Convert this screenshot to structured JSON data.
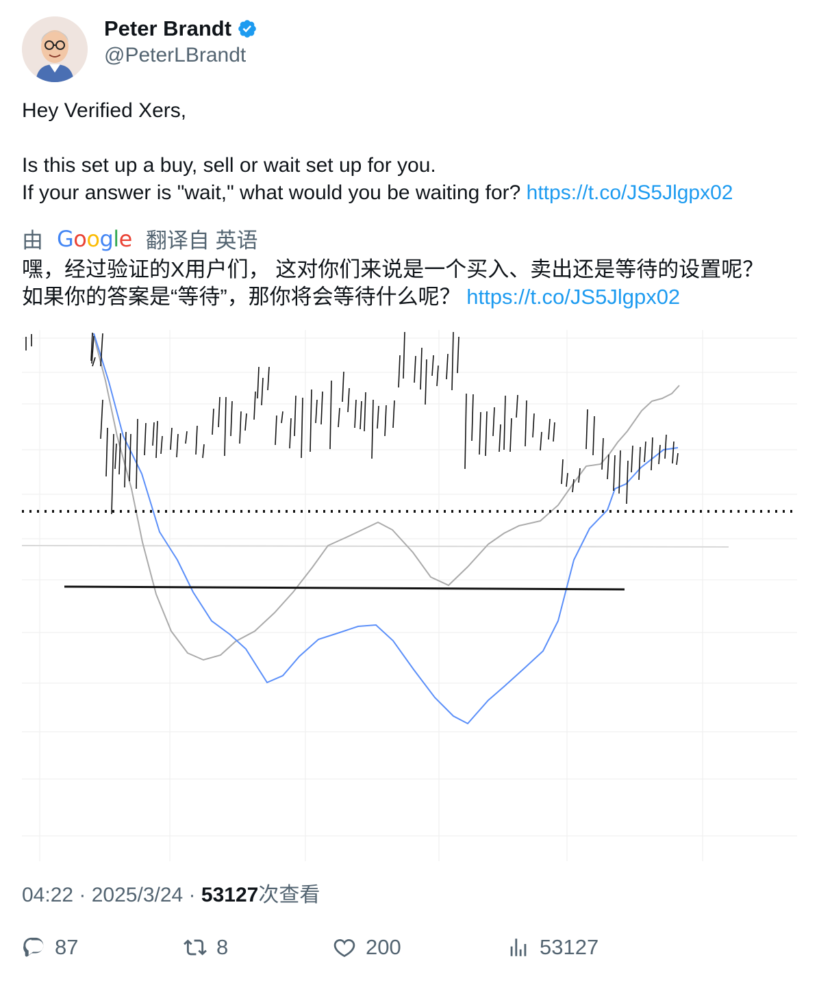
{
  "user": {
    "name": "Peter Brandt",
    "handle": "@PeterLBrandt",
    "verified": true,
    "badge_color": "#1d9bf0"
  },
  "tweet": {
    "line1": "Hey Verified Xers,",
    "line2": "Is this set up a buy, sell or wait set up for you.",
    "line3": "If your answer is \"wait,\" what would you be waiting for?",
    "link": "https://t.co/JS5Jlgpx02"
  },
  "translation": {
    "prefix": "由",
    "provider": "Google",
    "suffix": "翻译自 英语",
    "line1": "嘿，经过验证的X用户们， 这对你们来说是一个买入、卖出还是等待的设置呢？",
    "line2": "如果你的答案是“等待”，那你将会等待什么呢？",
    "link": "https://t.co/JS5Jlgpx02"
  },
  "meta": {
    "time": "04:22",
    "sep": " · ",
    "date": "2025/3/24",
    "views": "53127",
    "views_label": "次查看"
  },
  "actions": {
    "replies": "87",
    "reposts": "8",
    "likes": "200",
    "views": "53127"
  },
  "chart_data": {
    "type": "line",
    "colors": {
      "price_bars": "#111111",
      "ma_fast": "#5b8ff9",
      "ma_slow": "#aaaaaa",
      "neckline": "#111111",
      "dotted_level": "#111111"
    },
    "bars": [
      [
        118,
        115,
        5,
        53
      ],
      [
        103,
        101,
        4,
        45
      ],
      [
        105,
        102,
        9,
        49
      ],
      [
        107,
        103,
        40,
        53
      ],
      [
        118,
        115,
        102,
        159
      ],
      [
        125,
        123,
        143,
        214
      ],
      [
        134,
        131,
        152,
        269
      ],
      [
        138,
        136,
        166,
        203
      ],
      [
        144,
        142,
        151,
        211
      ],
      [
        152,
        150,
        149,
        230
      ],
      [
        159,
        157,
        152,
        221
      ],
      [
        169,
        167,
        130,
        232
      ],
      [
        181,
        179,
        136,
        183
      ],
      [
        193,
        191,
        135,
        169
      ],
      [
        198,
        196,
        133,
        187
      ],
      [
        205,
        203,
        155,
        181
      ],
      [
        219,
        217,
        143,
        175
      ],
      [
        228,
        226,
        152,
        186
      ],
      [
        241,
        239,
        148,
        166
      ],
      [
        256,
        254,
        140,
        182
      ],
      [
        266,
        264,
        167,
        187
      ],
      [
        280,
        278,
        115,
        153
      ],
      [
        289,
        287,
        98,
        142
      ],
      [
        298,
        296,
        98,
        184
      ],
      [
        307,
        305,
        104,
        155
      ],
      [
        320,
        318,
        119,
        166
      ],
      [
        328,
        326,
        122,
        147
      ],
      [
        341,
        339,
        90,
        131
      ],
      [
        346,
        344,
        54,
        100
      ],
      [
        352,
        350,
        70,
        110
      ],
      [
        361,
        359,
        54,
        88
      ],
      [
        372,
        370,
        125,
        168
      ],
      [
        381,
        379,
        119,
        136
      ],
      [
        393,
        391,
        129,
        173
      ],
      [
        400,
        398,
        96,
        155
      ],
      [
        410,
        408,
        99,
        187
      ],
      [
        423,
        421,
        87,
        178
      ],
      [
        431,
        429,
        102,
        136
      ],
      [
        439,
        437,
        90,
        138
      ],
      [
        452,
        450,
        74,
        174
      ],
      [
        464,
        462,
        114,
        142
      ],
      [
        470,
        468,
        61,
        105
      ],
      [
        478,
        476,
        85,
        120
      ],
      [
        488,
        486,
        102,
        143
      ],
      [
        496,
        494,
        104,
        145
      ],
      [
        502,
        500,
        91,
        148
      ],
      [
        513,
        511,
        102,
        188
      ],
      [
        521,
        519,
        111,
        144
      ],
      [
        532,
        530,
        110,
        155
      ],
      [
        544,
        542,
        103,
        143
      ],
      [
        552,
        550,
        37,
        84
      ],
      [
        559,
        557,
        3,
        71
      ],
      [
        575,
        573,
        38,
        77
      ],
      [
        584,
        582,
        26,
        87
      ],
      [
        591,
        589,
        43,
        109
      ],
      [
        601,
        599,
        37,
        67
      ],
      [
        608,
        606,
        52,
        82
      ],
      [
        622,
        620,
        35,
        72
      ],
      [
        630,
        628,
        3,
        88
      ],
      [
        638,
        636,
        10,
        63
      ],
      [
        649,
        647,
        93,
        203
      ],
      [
        659,
        657,
        94,
        162
      ],
      [
        670,
        668,
        120,
        182
      ],
      [
        679,
        677,
        119,
        184
      ],
      [
        690,
        688,
        113,
        155
      ],
      [
        699,
        697,
        138,
        178
      ],
      [
        706,
        704,
        96,
        175
      ],
      [
        715,
        713,
        129,
        178
      ],
      [
        724,
        722,
        95,
        128
      ],
      [
        737,
        735,
        103,
        170
      ],
      [
        748,
        746,
        122,
        157
      ],
      [
        759,
        757,
        149,
        176
      ],
      [
        771,
        769,
        130,
        160
      ],
      [
        778,
        776,
        135,
        163
      ],
      [
        790,
        788,
        189,
        225
      ],
      [
        797,
        795,
        209,
        229
      ],
      [
        806,
        804,
        218,
        237
      ],
      [
        815,
        813,
        202,
        223
      ],
      [
        826,
        824,
        116,
        174
      ],
      [
        836,
        834,
        126,
        183
      ],
      [
        849,
        847,
        158,
        204
      ],
      [
        857,
        855,
        182,
        218
      ],
      [
        866,
        864,
        183,
        235
      ],
      [
        874,
        872,
        176,
        239
      ],
      [
        885,
        883,
        191,
        254
      ],
      [
        892,
        890,
        169,
        208
      ],
      [
        903,
        901,
        171,
        219
      ],
      [
        911,
        909,
        163,
        193
      ],
      [
        921,
        919,
        157,
        205
      ],
      [
        932,
        930,
        168,
        196
      ],
      [
        941,
        939,
        153,
        188
      ],
      [
        952,
        950,
        163,
        195
      ],
      [
        958,
        956,
        180,
        197
      ]
    ],
    "ma_fast": [
      [
        105,
        5
      ],
      [
        127,
        76
      ],
      [
        148,
        155
      ],
      [
        175,
        210
      ],
      [
        201,
        295
      ],
      [
        227,
        336
      ],
      [
        250,
        383
      ],
      [
        277,
        425
      ],
      [
        304,
        445
      ],
      [
        327,
        466
      ],
      [
        358,
        515
      ],
      [
        381,
        505
      ],
      [
        405,
        477
      ],
      [
        433,
        452
      ],
      [
        461,
        443
      ],
      [
        491,
        433
      ],
      [
        517,
        431
      ],
      [
        542,
        454
      ],
      [
        572,
        496
      ],
      [
        603,
        537
      ],
      [
        630,
        564
      ],
      [
        651,
        575
      ],
      [
        681,
        541
      ],
      [
        704,
        521
      ],
      [
        735,
        493
      ],
      [
        761,
        469
      ],
      [
        783,
        425
      ],
      [
        806,
        336
      ],
      [
        829,
        290
      ],
      [
        855,
        263
      ],
      [
        866,
        232
      ],
      [
        882,
        225
      ],
      [
        904,
        201
      ],
      [
        937,
        175
      ],
      [
        958,
        172
      ]
    ],
    "ma_slow": [
      [
        104,
        5
      ],
      [
        122,
        74
      ],
      [
        139,
        155
      ],
      [
        160,
        232
      ],
      [
        176,
        310
      ],
      [
        196,
        386
      ],
      [
        218,
        440
      ],
      [
        242,
        472
      ],
      [
        265,
        482
      ],
      [
        290,
        475
      ],
      [
        312,
        455
      ],
      [
        340,
        440
      ],
      [
        369,
        413
      ],
      [
        396,
        383
      ],
      [
        424,
        347
      ],
      [
        447,
        315
      ],
      [
        478,
        301
      ],
      [
        520,
        281
      ],
      [
        541,
        292
      ],
      [
        571,
        325
      ],
      [
        597,
        361
      ],
      [
        623,
        373
      ],
      [
        651,
        346
      ],
      [
        681,
        313
      ],
      [
        704,
        297
      ],
      [
        726,
        286
      ],
      [
        757,
        279
      ],
      [
        783,
        256
      ],
      [
        804,
        226
      ],
      [
        824,
        199
      ],
      [
        845,
        196
      ],
      [
        858,
        181
      ],
      [
        870,
        164
      ],
      [
        884,
        148
      ],
      [
        905,
        118
      ],
      [
        920,
        104
      ],
      [
        935,
        100
      ],
      [
        949,
        93
      ],
      [
        960,
        81
      ]
    ],
    "dotted_level": 265,
    "neckline": [
      [
        62,
        375
      ],
      [
        880,
        379
      ]
    ],
    "minor_line": [
      [
        0,
        315
      ],
      [
        1032,
        317
      ]
    ],
    "grid_y": [
      12,
      62,
      108,
      175,
      240,
      305,
      365,
      442,
      516,
      587,
      656,
      739
    ],
    "grid_x": [
      26,
      216,
      414,
      609,
      796,
      994
    ]
  }
}
